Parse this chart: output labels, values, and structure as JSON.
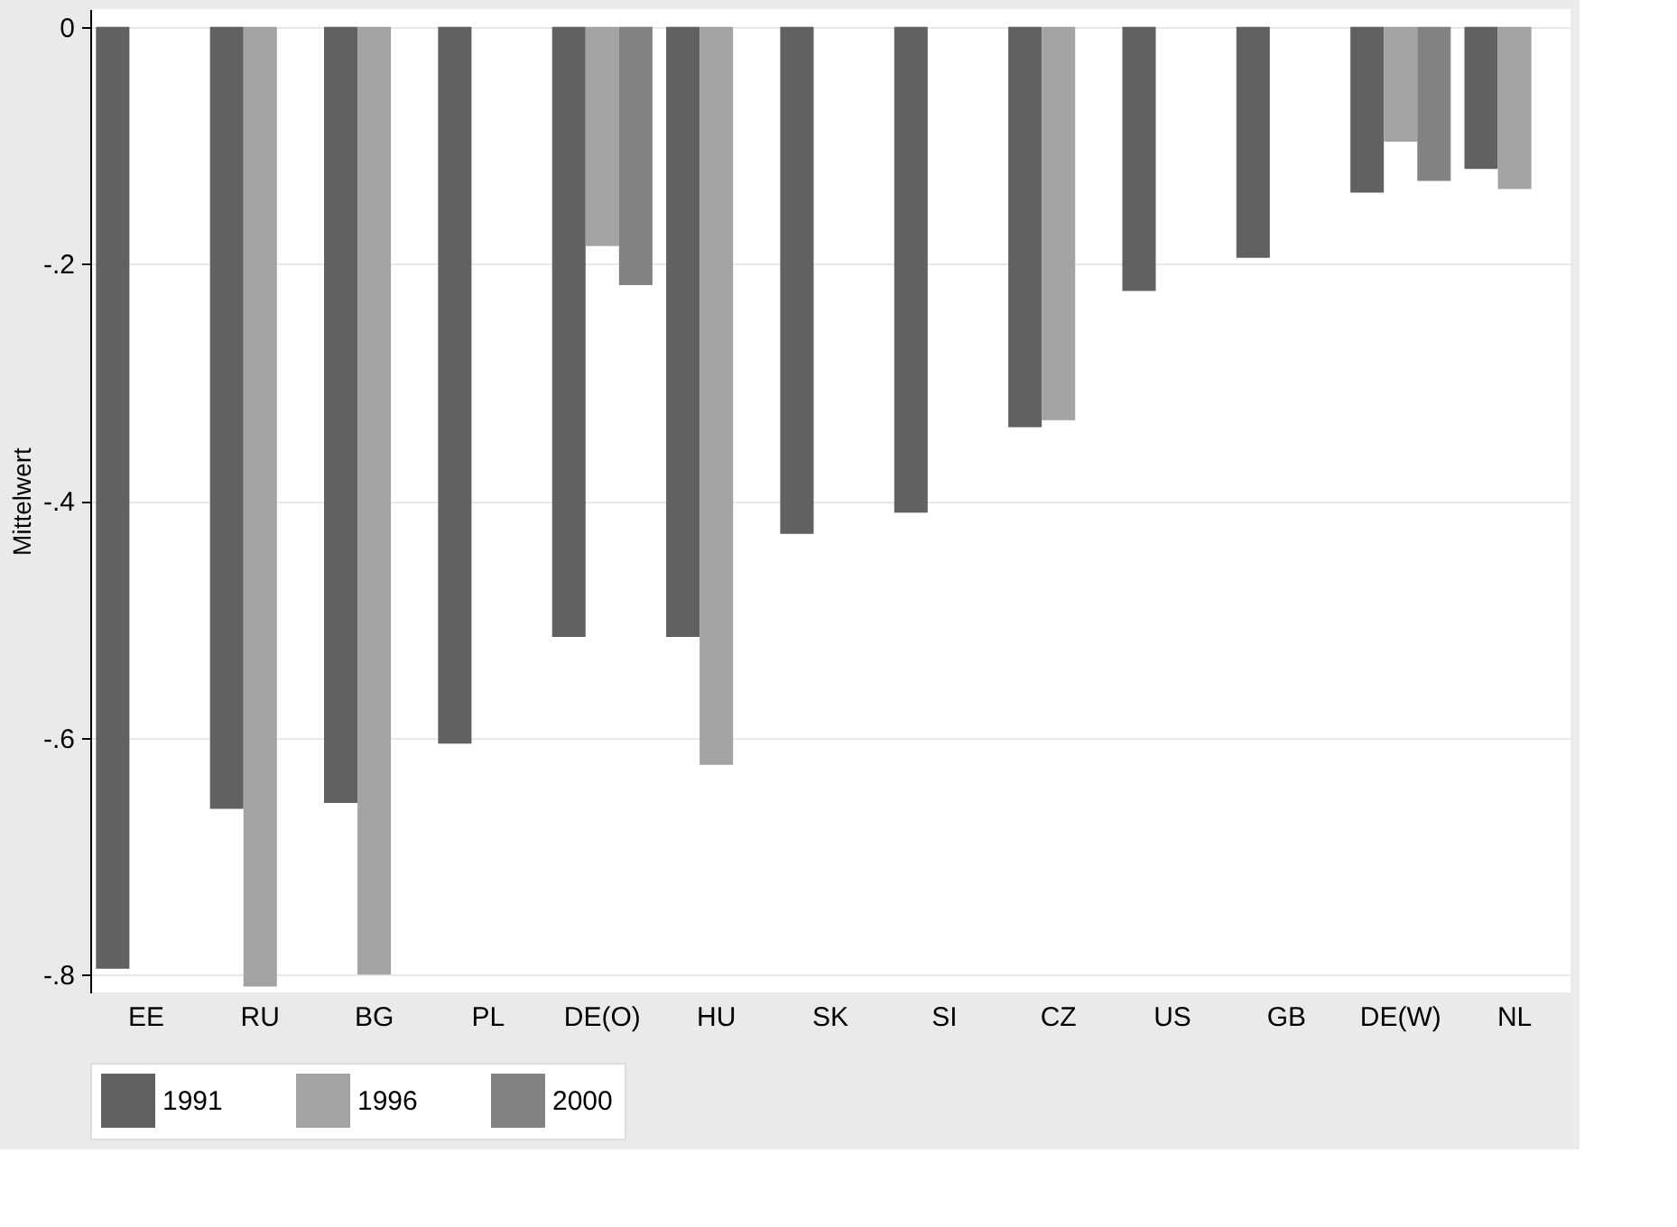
{
  "chart_data": {
    "type": "bar",
    "ylabel": "Mittelwert",
    "categories": [
      "EE",
      "RU",
      "BG",
      "PL",
      "DE(O)",
      "HU",
      "SK",
      "SI",
      "CZ",
      "US",
      "GB",
      "DE(W)",
      "NL"
    ],
    "series": [
      {
        "name": "1991",
        "color": "#5f6260",
        "values": [
          -0.795,
          -0.66,
          -0.655,
          -0.605,
          -0.515,
          -0.515,
          -0.428,
          -0.41,
          -0.338,
          -0.223,
          -0.195,
          -0.14,
          -0.12
        ]
      },
      {
        "name": "1996",
        "color": "#a3a3a3",
        "values": [
          null,
          -0.81,
          -0.8,
          null,
          -0.185,
          -0.623,
          null,
          null,
          -0.332,
          null,
          null,
          -0.097,
          -0.137
        ]
      },
      {
        "name": "2000",
        "color": "#828282",
        "values": [
          null,
          null,
          null,
          null,
          -0.218,
          null,
          null,
          null,
          null,
          null,
          null,
          -0.13,
          null
        ]
      }
    ],
    "ylim": [
      -0.815,
      0.015
    ],
    "yticks": [
      {
        "value": 0,
        "label": "0"
      },
      {
        "value": -0.2,
        "label": "-.2"
      },
      {
        "value": -0.4,
        "label": "-.4"
      },
      {
        "value": -0.6,
        "label": "-.6"
      },
      {
        "value": -0.8,
        "label": "-.8"
      }
    ],
    "grid": "y",
    "legend": "bottom"
  }
}
